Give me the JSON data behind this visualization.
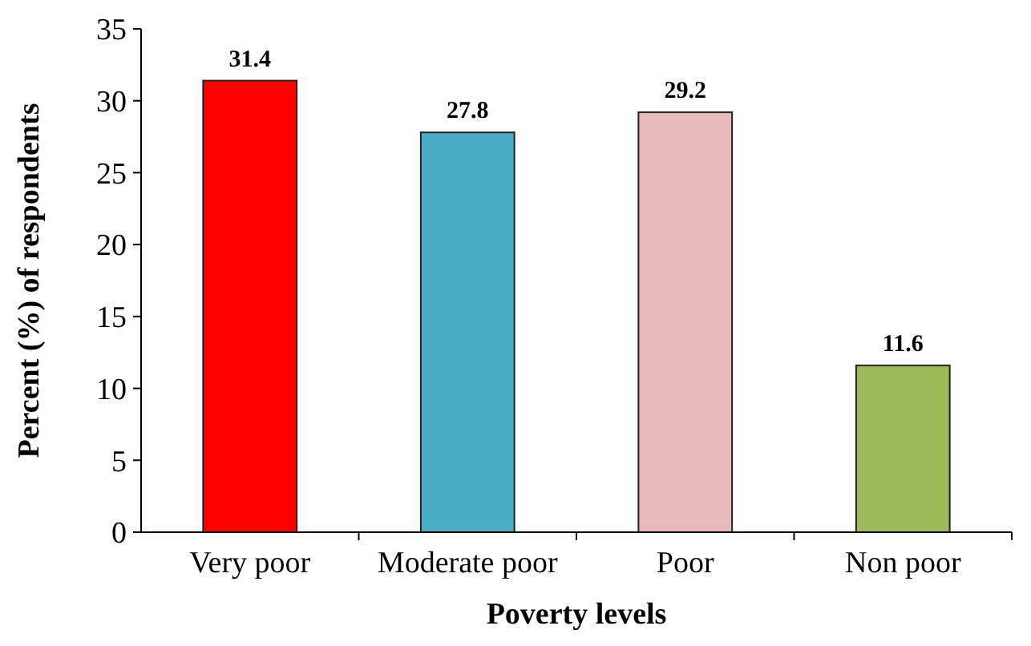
{
  "chart_data": {
    "type": "bar",
    "xlabel": "Poverty levels",
    "ylabel": "Percent (%) of respondents",
    "categories": [
      "Very poor",
      "Moderate poor",
      "Poor",
      "Non poor"
    ],
    "values": [
      31.4,
      27.8,
      29.2,
      11.6
    ],
    "colors": [
      "#ff0000",
      "#4bacc6",
      "#e6b9b8",
      "#9bbb59"
    ],
    "ylim": [
      0,
      35
    ],
    "yticks": [
      0,
      5,
      10,
      15,
      20,
      25,
      30,
      35
    ],
    "data_labels": true,
    "grid": false
  }
}
